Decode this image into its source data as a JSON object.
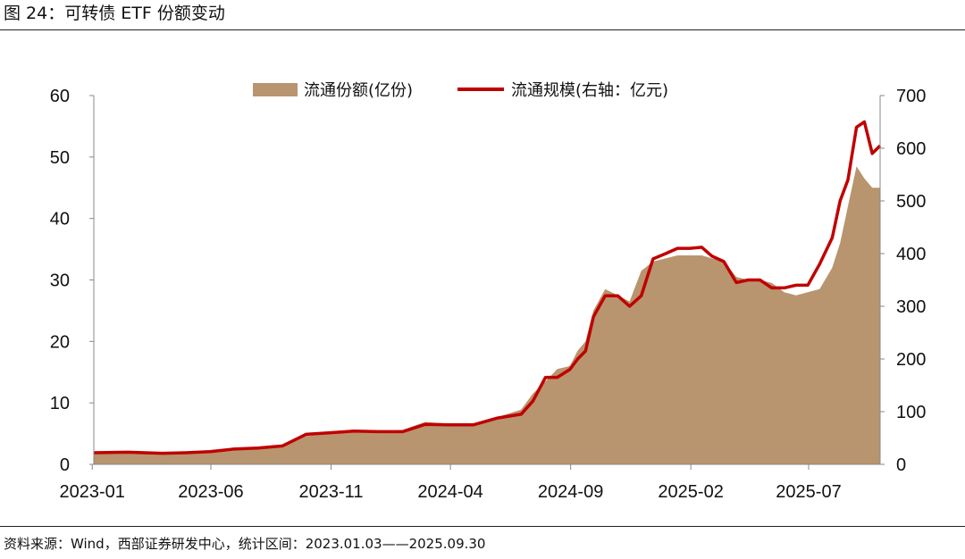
{
  "title": "图 24：可转债 ETF 份额变动",
  "source": "资料来源：Wind，西部证券研发中心，统计区间：2023.01.03——2025.09.30",
  "colors": {
    "area": "#b8956e",
    "line": "#c00000"
  },
  "chart_data": {
    "type": "area",
    "title": "",
    "x_ticks": [
      "2023-01",
      "2023-06",
      "2023-11",
      "2024-04",
      "2024-09",
      "2025-02",
      "2025-07"
    ],
    "xlim": [
      "2023-01-03",
      "2025-09-30"
    ],
    "y_left": {
      "ylim": [
        0,
        60
      ],
      "ticks": [
        "0",
        "10",
        "20",
        "30",
        "40",
        "50",
        "60"
      ]
    },
    "y_right": {
      "ylim": [
        0,
        700
      ],
      "ticks": [
        "0",
        "100",
        "200",
        "300",
        "400",
        "500",
        "600",
        "700"
      ]
    },
    "grid": false,
    "legend": "top",
    "series": [
      {
        "name": "流通份额(亿份)",
        "type": "area",
        "axis": "left",
        "x": [
          "2023-01-03",
          "2023-02-15",
          "2023-03-31",
          "2023-04-30",
          "2023-05-31",
          "2023-06-30",
          "2023-07-31",
          "2023-08-31",
          "2023-09-30",
          "2023-10-31",
          "2023-11-30",
          "2023-12-31",
          "2024-01-31",
          "2024-02-29",
          "2024-03-31",
          "2024-04-30",
          "2024-05-31",
          "2024-06-30",
          "2024-07-15",
          "2024-07-31",
          "2024-08-15",
          "2024-08-31",
          "2024-09-10",
          "2024-09-20",
          "2024-09-30",
          "2024-10-15",
          "2024-10-31",
          "2024-11-15",
          "2024-11-30",
          "2024-12-15",
          "2024-12-31",
          "2025-01-15",
          "2025-01-31",
          "2025-02-15",
          "2025-02-28",
          "2025-03-15",
          "2025-03-31",
          "2025-04-15",
          "2025-04-30",
          "2025-05-15",
          "2025-05-31",
          "2025-06-15",
          "2025-06-30",
          "2025-07-15",
          "2025-07-31",
          "2025-08-10",
          "2025-08-20",
          "2025-08-31",
          "2025-09-10",
          "2025-09-20",
          "2025-09-30"
        ],
        "values": [
          1.9,
          2.0,
          1.9,
          1.9,
          2.1,
          2.5,
          2.7,
          3.1,
          4.6,
          5.0,
          5.2,
          5.4,
          5.6,
          6.9,
          6.6,
          6.5,
          7.7,
          8.9,
          11.5,
          13.5,
          15.5,
          16.0,
          18.5,
          20.0,
          25.0,
          28.5,
          27.5,
          26.5,
          31.5,
          33.0,
          33.5,
          34.0,
          34.0,
          34.0,
          33.5,
          33.0,
          30.5,
          30.0,
          30.0,
          29.5,
          28.0,
          27.5,
          28.0,
          28.5,
          32.0,
          36.0,
          42.0,
          48.5,
          46.5,
          45.0,
          45.0
        ]
      },
      {
        "name": "流通规模(右轴：亿元)",
        "type": "line",
        "axis": "right",
        "x": [
          "2023-01-03",
          "2023-02-15",
          "2023-03-31",
          "2023-04-30",
          "2023-05-31",
          "2023-06-30",
          "2023-07-31",
          "2023-08-31",
          "2023-09-30",
          "2023-10-31",
          "2023-11-30",
          "2023-12-31",
          "2024-01-31",
          "2024-02-29",
          "2024-03-31",
          "2024-04-30",
          "2024-05-31",
          "2024-06-30",
          "2024-07-15",
          "2024-07-31",
          "2024-08-15",
          "2024-08-31",
          "2024-09-10",
          "2024-09-20",
          "2024-09-30",
          "2024-10-15",
          "2024-10-31",
          "2024-11-15",
          "2024-11-30",
          "2024-12-15",
          "2024-12-31",
          "2025-01-15",
          "2025-01-31",
          "2025-02-15",
          "2025-02-28",
          "2025-03-15",
          "2025-03-31",
          "2025-04-15",
          "2025-04-30",
          "2025-05-15",
          "2025-05-31",
          "2025-06-15",
          "2025-06-30",
          "2025-07-15",
          "2025-07-31",
          "2025-08-10",
          "2025-08-20",
          "2025-08-31",
          "2025-09-10",
          "2025-09-20",
          "2025-09-30"
        ],
        "values": [
          22,
          23,
          21,
          22,
          24,
          29,
          31,
          35,
          57,
          60,
          63,
          62,
          62,
          76,
          75,
          75,
          88,
          95,
          120,
          165,
          165,
          180,
          200,
          215,
          280,
          320,
          320,
          300,
          320,
          390,
          400,
          410,
          410,
          412,
          395,
          385,
          345,
          350,
          350,
          335,
          335,
          340,
          340,
          380,
          430,
          500,
          540,
          640,
          650,
          590,
          605
        ]
      }
    ]
  }
}
